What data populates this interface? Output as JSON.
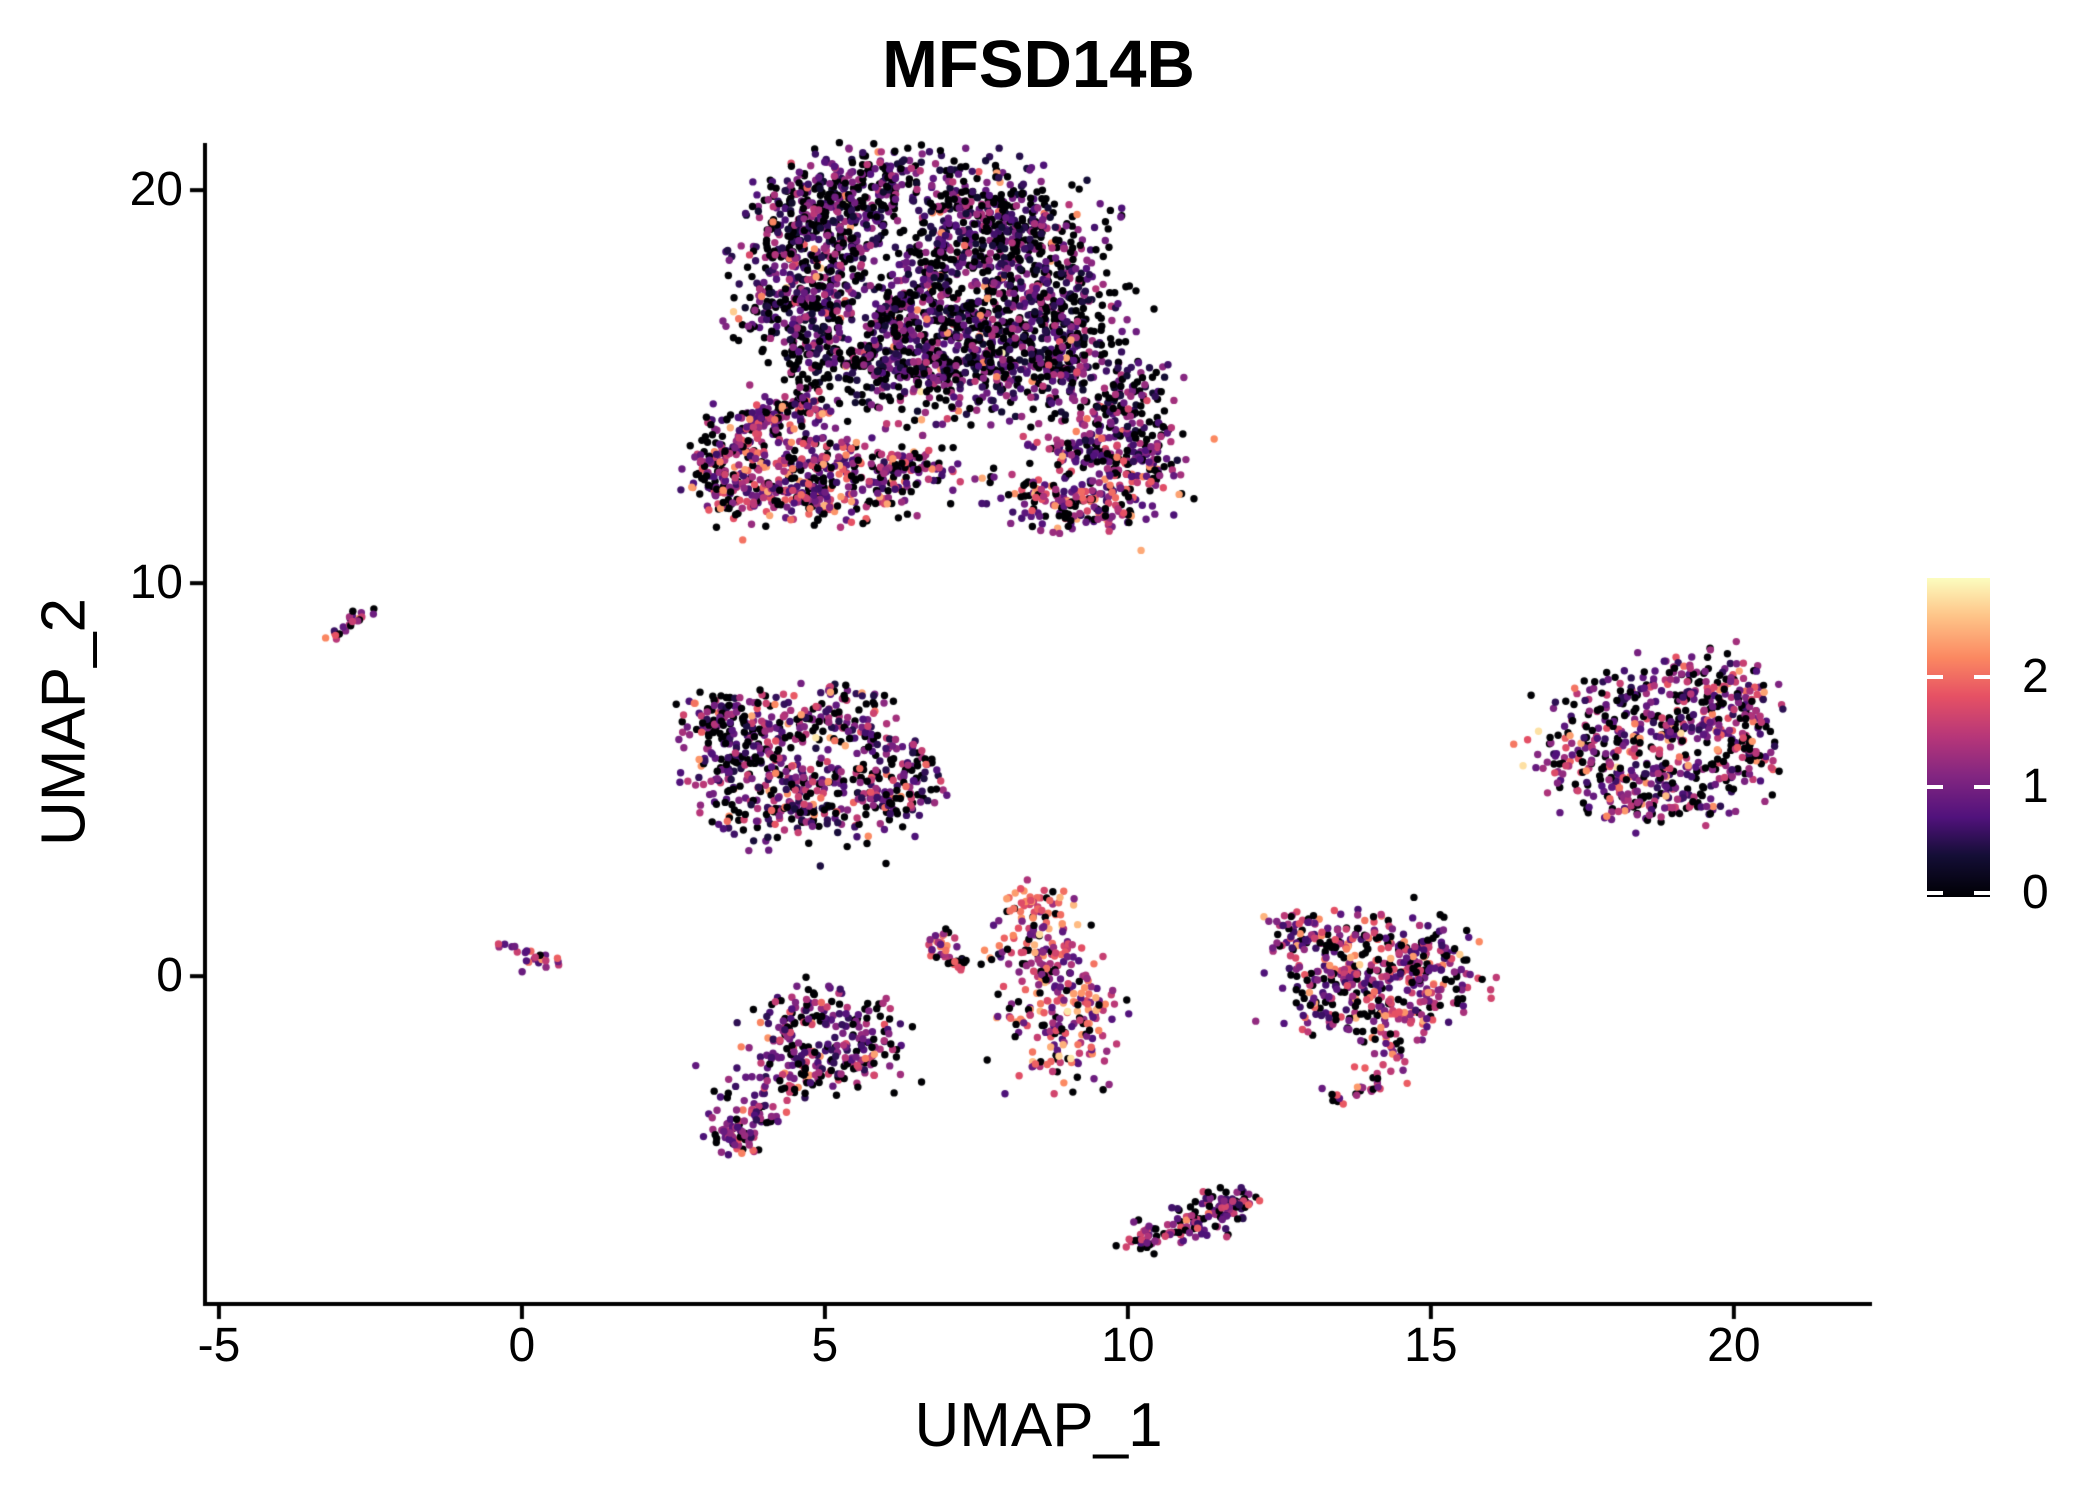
{
  "title": "MFSD14B",
  "chart_data": {
    "type": "scatter",
    "title": "MFSD14B",
    "xlabel": "UMAP_1",
    "ylabel": "UMAP_2",
    "xlim": [
      -5.23,
      22.28
    ],
    "ylim": [
      -8.29,
      21.2
    ],
    "x_ticks": [
      -5,
      0,
      5,
      10,
      15,
      20
    ],
    "y_ticks": [
      0,
      10,
      20
    ],
    "grid": false,
    "legend_position": "right",
    "point_radius": 3.7,
    "seed": 42,
    "colorbar": {
      "ticks": [
        0,
        1,
        2
      ],
      "min": 0,
      "max": 2.9,
      "colormap": "magma"
    },
    "colormap_stops": [
      [
        0.0,
        "#000004"
      ],
      [
        0.13,
        "#140e36"
      ],
      [
        0.25,
        "#51127c"
      ],
      [
        0.38,
        "#832681"
      ],
      [
        0.5,
        "#b63679"
      ],
      [
        0.63,
        "#e65164"
      ],
      [
        0.75,
        "#fb8861"
      ],
      [
        0.88,
        "#fec488"
      ],
      [
        1.0,
        "#fcfdbf"
      ]
    ],
    "clusters": [
      {
        "name": "left-dash",
        "n": 22,
        "blobs": [
          [
            -3.0,
            8.7,
            0.13,
            0.1,
            1
          ],
          [
            -2.8,
            9.0,
            0.12,
            0.1,
            1
          ],
          [
            -2.65,
            9.25,
            0.1,
            0.08,
            0.8
          ]
        ],
        "expr": {
          "p0": 0.18,
          "lo": 0.5,
          "hi": 1.8,
          "hot_p": 0.15,
          "hot": [
            1.8,
            2.3
          ]
        },
        "voids": []
      },
      {
        "name": "main-upper",
        "n": 2750,
        "blobs": [
          [
            5.0,
            19.6,
            0.55,
            0.55,
            3
          ],
          [
            6.1,
            20.2,
            0.7,
            0.5,
            3
          ],
          [
            7.4,
            19.8,
            0.7,
            0.5,
            3
          ],
          [
            8.3,
            19.0,
            0.6,
            0.5,
            2.5
          ],
          [
            4.6,
            18.6,
            0.5,
            0.65,
            2.5
          ],
          [
            5.6,
            18.4,
            0.7,
            0.7,
            3
          ],
          [
            6.9,
            18.3,
            0.7,
            0.7,
            3
          ],
          [
            8.0,
            17.9,
            0.7,
            0.7,
            3
          ],
          [
            4.5,
            17.2,
            0.5,
            0.6,
            2
          ],
          [
            5.6,
            16.9,
            0.7,
            0.6,
            3
          ],
          [
            6.9,
            16.7,
            0.7,
            0.6,
            3
          ],
          [
            8.2,
            16.4,
            0.7,
            0.6,
            3
          ],
          [
            9.0,
            17.2,
            0.5,
            0.7,
            2
          ],
          [
            5.0,
            15.8,
            0.5,
            0.5,
            2
          ],
          [
            6.2,
            15.6,
            0.6,
            0.5,
            2.5
          ],
          [
            7.5,
            15.4,
            0.6,
            0.5,
            2.5
          ],
          [
            8.8,
            15.6,
            0.5,
            0.5,
            2
          ],
          [
            9.6,
            14.9,
            0.55,
            0.7,
            2.5
          ],
          [
            10.0,
            13.8,
            0.45,
            0.6,
            2
          ],
          [
            6.5,
            14.5,
            1.5,
            0.8,
            1.5
          ]
        ],
        "expr": {
          "p0": 0.38,
          "lo": 0.3,
          "hi": 1.5,
          "hot_p": 0.05,
          "hot": [
            1.7,
            2.4
          ],
          "rare_p": 0.004,
          "rare": [
            2.5,
            2.85
          ]
        },
        "voids": [
          [
            6.06,
            18.3,
            2.5,
            0.25,
            0.8,
            1.286
          ],
          [
            7.0,
            13.45,
            2.5,
            0.5,
            0.65,
            -0.32
          ],
          [
            8.15,
            14.7,
            0.5,
            0.35,
            0.6,
            0
          ],
          [
            9.05,
            14.3,
            1.5,
            0.28,
            0.5,
            1.1
          ]
        ]
      },
      {
        "name": "main-lower-bright",
        "n": 1050,
        "blobs": [
          [
            4.05,
            14.15,
            0.2,
            0.15,
            1
          ],
          [
            4.55,
            14.45,
            0.3,
            0.2,
            1
          ],
          [
            3.4,
            13.4,
            0.35,
            0.45,
            1.6
          ],
          [
            3.3,
            12.5,
            0.3,
            0.4,
            1.6
          ],
          [
            4.1,
            12.4,
            0.45,
            0.5,
            2.2
          ],
          [
            5.0,
            12.3,
            0.5,
            0.45,
            2.2
          ],
          [
            5.9,
            12.7,
            0.5,
            0.5,
            2
          ],
          [
            6.6,
            13.3,
            0.45,
            0.45,
            1.5
          ],
          [
            5.0,
            13.4,
            0.5,
            0.4,
            1.5
          ],
          [
            9.3,
            13.2,
            0.6,
            0.5,
            2
          ],
          [
            10.1,
            12.6,
            0.4,
            0.45,
            1.4
          ],
          [
            8.7,
            12.3,
            0.5,
            0.45,
            1.6
          ],
          [
            9.4,
            11.9,
            0.5,
            0.35,
            1.5
          ]
        ],
        "expr": {
          "p0": 0.28,
          "lo": 0.6,
          "hi": 1.9,
          "hot_p": 0.13,
          "hot": [
            1.9,
            2.45
          ],
          "rare_p": 0.003,
          "rare": [
            2.5,
            2.8
          ]
        },
        "voids": [
          [
            7.0,
            13.45,
            2.5,
            0.5,
            0.55,
            -0.32
          ]
        ]
      },
      {
        "name": "mid-left",
        "n": 720,
        "blobs": [
          [
            3.6,
            6.3,
            0.45,
            0.4,
            2
          ],
          [
            4.5,
            6.5,
            0.5,
            0.35,
            2
          ],
          [
            5.5,
            6.2,
            0.5,
            0.4,
            1.5
          ],
          [
            6.2,
            5.6,
            0.4,
            0.5,
            1.5
          ],
          [
            3.4,
            5.4,
            0.4,
            0.5,
            2
          ],
          [
            4.3,
            5.3,
            0.5,
            0.5,
            2.5
          ],
          [
            5.3,
            5.0,
            0.5,
            0.45,
            2
          ],
          [
            3.9,
            4.3,
            0.5,
            0.4,
            2
          ],
          [
            4.9,
            4.1,
            0.5,
            0.35,
            1.8
          ],
          [
            6.0,
            4.4,
            0.4,
            0.4,
            1.2
          ],
          [
            3.3,
            6.9,
            0.3,
            0.25,
            0.8
          ],
          [
            6.55,
            4.9,
            0.3,
            0.4,
            0.8
          ],
          [
            5.5,
            7.15,
            0.35,
            0.15,
            0.5
          ]
        ],
        "expr": {
          "p0": 0.34,
          "lo": 0.4,
          "hi": 1.7,
          "hot_p": 0.1,
          "hot": [
            1.8,
            2.4
          ],
          "rare_p": 0.003,
          "rare": [
            2.5,
            2.8
          ]
        },
        "voids": [
          [
            4.8,
            5.6,
            0.55,
            0.4,
            0.6,
            0
          ],
          [
            3.95,
            4.85,
            0.45,
            0.3,
            0.5,
            0
          ],
          [
            5.6,
            5.6,
            0.4,
            0.3,
            0.45,
            0
          ]
        ]
      },
      {
        "name": "origin-blob",
        "n": 26,
        "blobs": [
          [
            -0.2,
            0.72,
            0.12,
            0.1,
            1
          ],
          [
            0.05,
            0.55,
            0.15,
            0.1,
            1
          ],
          [
            0.3,
            0.4,
            0.13,
            0.09,
            0.9
          ],
          [
            0.48,
            0.3,
            0.1,
            0.08,
            0.6
          ]
        ],
        "expr": {
          "p0": 0.12,
          "lo": 0.6,
          "hi": 1.8,
          "hot_p": 0.18,
          "hot": [
            1.8,
            2.3
          ]
        },
        "voids": []
      },
      {
        "name": "lower-left",
        "n": 390,
        "blobs": [
          [
            4.6,
            -0.9,
            0.45,
            0.35,
            2
          ],
          [
            5.4,
            -1.0,
            0.4,
            0.35,
            1.6
          ],
          [
            4.4,
            -1.8,
            0.45,
            0.4,
            2
          ],
          [
            5.3,
            -1.9,
            0.45,
            0.4,
            1.8
          ],
          [
            5.85,
            -1.4,
            0.25,
            0.4,
            1
          ],
          [
            4.9,
            -2.55,
            0.5,
            0.3,
            1.4
          ],
          [
            4.0,
            -2.9,
            0.35,
            0.3,
            1.2
          ],
          [
            3.8,
            -3.5,
            0.3,
            0.3,
            1.3
          ],
          [
            3.55,
            -4.0,
            0.25,
            0.25,
            1.2
          ]
        ],
        "expr": {
          "p0": 0.3,
          "lo": 0.5,
          "hi": 1.8,
          "hot_p": 0.09,
          "hot": [
            1.8,
            2.35
          ]
        },
        "voids": [
          [
            4.9,
            -1.4,
            0.45,
            0.3,
            0.55,
            0
          ]
        ]
      },
      {
        "name": "small-c",
        "n": 38,
        "blobs": [
          [
            6.85,
            0.9,
            0.1,
            0.12,
            1
          ],
          [
            6.95,
            0.55,
            0.1,
            0.15,
            1
          ],
          [
            7.15,
            0.3,
            0.12,
            0.1,
            0.8
          ],
          [
            7.0,
            1.1,
            0.08,
            0.08,
            0.6
          ]
        ],
        "expr": {
          "p0": 0.12,
          "lo": 0.8,
          "hi": 2.0,
          "hot_p": 0.25,
          "hot": [
            2.0,
            2.45
          ]
        },
        "voids": []
      },
      {
        "name": "small-c-outliers",
        "n": 7,
        "blobs": [
          [
            7.55,
            0.35,
            0.22,
            0.12,
            1
          ]
        ],
        "expr": {
          "p0": 0.75,
          "lo": 0.3,
          "hi": 0.9,
          "hot_p": 0,
          "hot": [
            0,
            0
          ]
        },
        "voids": []
      },
      {
        "name": "center-tall",
        "n": 310,
        "blobs": [
          [
            8.6,
            1.5,
            0.4,
            0.35,
            2.2
          ],
          [
            8.45,
            0.6,
            0.35,
            0.4,
            1.8
          ],
          [
            8.9,
            -0.1,
            0.4,
            0.35,
            1.8
          ],
          [
            8.6,
            -1.0,
            0.45,
            0.4,
            2.2
          ],
          [
            9.2,
            -1.5,
            0.35,
            0.3,
            1.4
          ],
          [
            8.9,
            -2.3,
            0.4,
            0.3,
            1.5
          ],
          [
            8.35,
            2.0,
            0.2,
            0.15,
            0.8
          ],
          [
            9.5,
            -0.9,
            0.25,
            0.3,
            0.9
          ]
        ],
        "expr": {
          "p0": 0.18,
          "lo": 0.7,
          "hi": 2.1,
          "hot_p": 0.22,
          "hot": [
            2.0,
            2.55
          ],
          "rare_p": 0.008,
          "rare": [
            2.6,
            2.8
          ]
        },
        "voids": []
      },
      {
        "name": "banana-bottom",
        "n": 160,
        "blobs": [
          [
            10.25,
            -6.75,
            0.2,
            0.15,
            1
          ],
          [
            10.7,
            -6.5,
            0.3,
            0.18,
            1.3
          ],
          [
            11.15,
            -6.2,
            0.3,
            0.2,
            1.5
          ],
          [
            11.5,
            -5.9,
            0.28,
            0.25,
            1.6
          ],
          [
            11.75,
            -5.75,
            0.2,
            0.2,
            1
          ]
        ],
        "expr": {
          "p0": 0.33,
          "lo": 0.5,
          "hi": 1.7,
          "hot_p": 0.07,
          "hot": [
            1.8,
            2.3
          ]
        },
        "voids": []
      },
      {
        "name": "right-mid",
        "n": 500,
        "blobs": [
          [
            13.3,
            0.9,
            0.45,
            0.35,
            2
          ],
          [
            14.2,
            1.0,
            0.5,
            0.35,
            2.2
          ],
          [
            15.0,
            0.6,
            0.4,
            0.4,
            1.8
          ],
          [
            13.2,
            0.0,
            0.45,
            0.45,
            2.2
          ],
          [
            14.2,
            0.1,
            0.5,
            0.45,
            2.4
          ],
          [
            15.2,
            -0.3,
            0.4,
            0.4,
            1.6
          ],
          [
            13.6,
            -0.9,
            0.5,
            0.4,
            2
          ],
          [
            14.6,
            -1.1,
            0.45,
            0.35,
            1.7
          ],
          [
            12.75,
            1.3,
            0.25,
            0.2,
            0.8
          ]
        ],
        "expr": {
          "p0": 0.27,
          "lo": 0.6,
          "hi": 1.9,
          "hot_p": 0.13,
          "hot": [
            1.9,
            2.5
          ],
          "rare_p": 0.005,
          "rare": [
            2.5,
            2.8
          ]
        },
        "voids": [
          [
            14.15,
            0.45,
            0.35,
            0.28,
            0.5,
            0
          ],
          [
            13.5,
            0.5,
            0.3,
            0.2,
            0.4,
            0
          ]
        ]
      },
      {
        "name": "right-mid-tail",
        "n": 42,
        "blobs": [
          [
            14.35,
            -1.9,
            0.12,
            0.25,
            1
          ],
          [
            14.2,
            -2.5,
            0.15,
            0.2,
            1
          ],
          [
            13.9,
            -2.95,
            0.2,
            0.12,
            1
          ],
          [
            13.55,
            -3.1,
            0.18,
            0.1,
            0.8
          ]
        ],
        "expr": {
          "p0": 0.25,
          "lo": 0.8,
          "hi": 2.0,
          "hot_p": 0.2,
          "hot": [
            1.9,
            2.3
          ]
        },
        "voids": []
      },
      {
        "name": "far-right",
        "n": 680,
        "blobs": [
          [
            17.8,
            6.9,
            0.4,
            0.4,
            1.6
          ],
          [
            18.7,
            7.4,
            0.5,
            0.4,
            2
          ],
          [
            19.6,
            7.5,
            0.45,
            0.4,
            2
          ],
          [
            20.2,
            6.9,
            0.3,
            0.35,
            1.5
          ],
          [
            17.6,
            6.0,
            0.4,
            0.45,
            1.8
          ],
          [
            18.6,
            6.3,
            0.5,
            0.45,
            2.2
          ],
          [
            19.6,
            6.4,
            0.5,
            0.45,
            2
          ],
          [
            20.3,
            5.9,
            0.25,
            0.35,
            1.3
          ],
          [
            17.9,
            5.0,
            0.45,
            0.4,
            1.8
          ],
          [
            18.9,
            5.2,
            0.5,
            0.4,
            2
          ],
          [
            19.8,
            5.2,
            0.4,
            0.4,
            1.6
          ],
          [
            18.5,
            4.4,
            0.4,
            0.3,
            1.3
          ],
          [
            19.3,
            4.5,
            0.35,
            0.3,
            1.2
          ],
          [
            17.15,
            5.6,
            0.25,
            0.35,
            0.9
          ]
        ],
        "expr": {
          "p0": 0.32,
          "lo": 0.5,
          "hi": 1.8,
          "hot_p": 0.1,
          "hot": [
            1.8,
            2.4
          ],
          "rare_p": 0.004,
          "rare": [
            2.5,
            2.8
          ]
        },
        "voids": [
          [
            18.4,
            6.75,
            0.5,
            0.3,
            0.55,
            0
          ],
          [
            19.35,
            5.75,
            0.4,
            0.28,
            0.5,
            0
          ],
          [
            17.6,
            6.5,
            0.3,
            0.35,
            0.45,
            0
          ]
        ]
      }
    ]
  }
}
